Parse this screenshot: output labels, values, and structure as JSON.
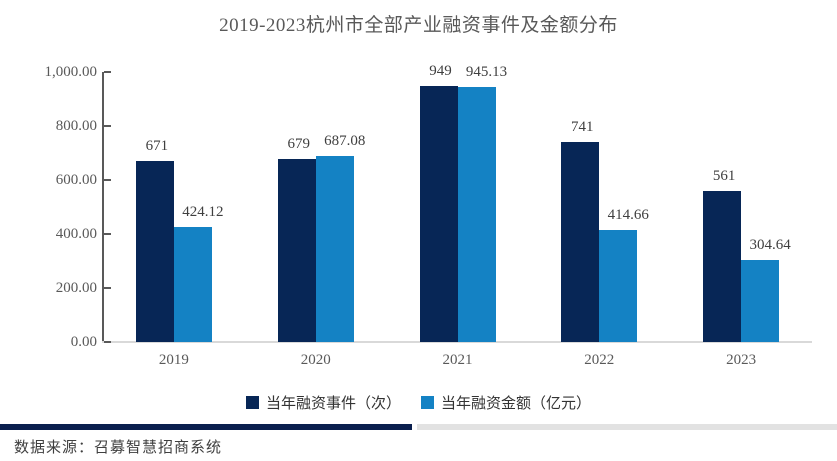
{
  "title": "2019-2023杭州市全部产业融资事件及金额分布",
  "chart_data": {
    "type": "bar",
    "title": "2019-2023杭州市全部产业融资事件及金额分布",
    "categories": [
      "2019",
      "2020",
      "2021",
      "2022",
      "2023"
    ],
    "series": [
      {
        "name": "当年融资事件（次）",
        "color": "#072656",
        "values": [
          671,
          679,
          949,
          741,
          561
        ],
        "labels": [
          "671",
          "679",
          "949",
          "741",
          "561"
        ]
      },
      {
        "name": "当年融资金额（亿元）",
        "color": "#1482c4",
        "values": [
          424.12,
          687.08,
          945.13,
          414.66,
          304.64
        ],
        "labels": [
          "424.12",
          "687.08",
          "945.13",
          "414.66",
          "304.64"
        ]
      }
    ],
    "ylim": [
      0,
      1000
    ],
    "y_ticks": [
      {
        "value": 0,
        "label": "0.00"
      },
      {
        "value": 200,
        "label": "200.00"
      },
      {
        "value": 400,
        "label": "400.00"
      },
      {
        "value": 600,
        "label": "600.00"
      },
      {
        "value": 800,
        "label": "800.00"
      },
      {
        "value": 1000,
        "label": "1,000.00"
      }
    ],
    "grid": false,
    "legend_position": "bottom"
  },
  "footer": {
    "source_text": "数据来源：召募智慧招商系统"
  },
  "colors": {
    "series_events": "#072656",
    "series_amount": "#1482c4",
    "axis_line": "#595959",
    "baseline": "#d9d9d9",
    "label_text": "#3f3f3f",
    "divider_navy": "#0b1f4e",
    "divider_gray": "#e2e2e2"
  }
}
